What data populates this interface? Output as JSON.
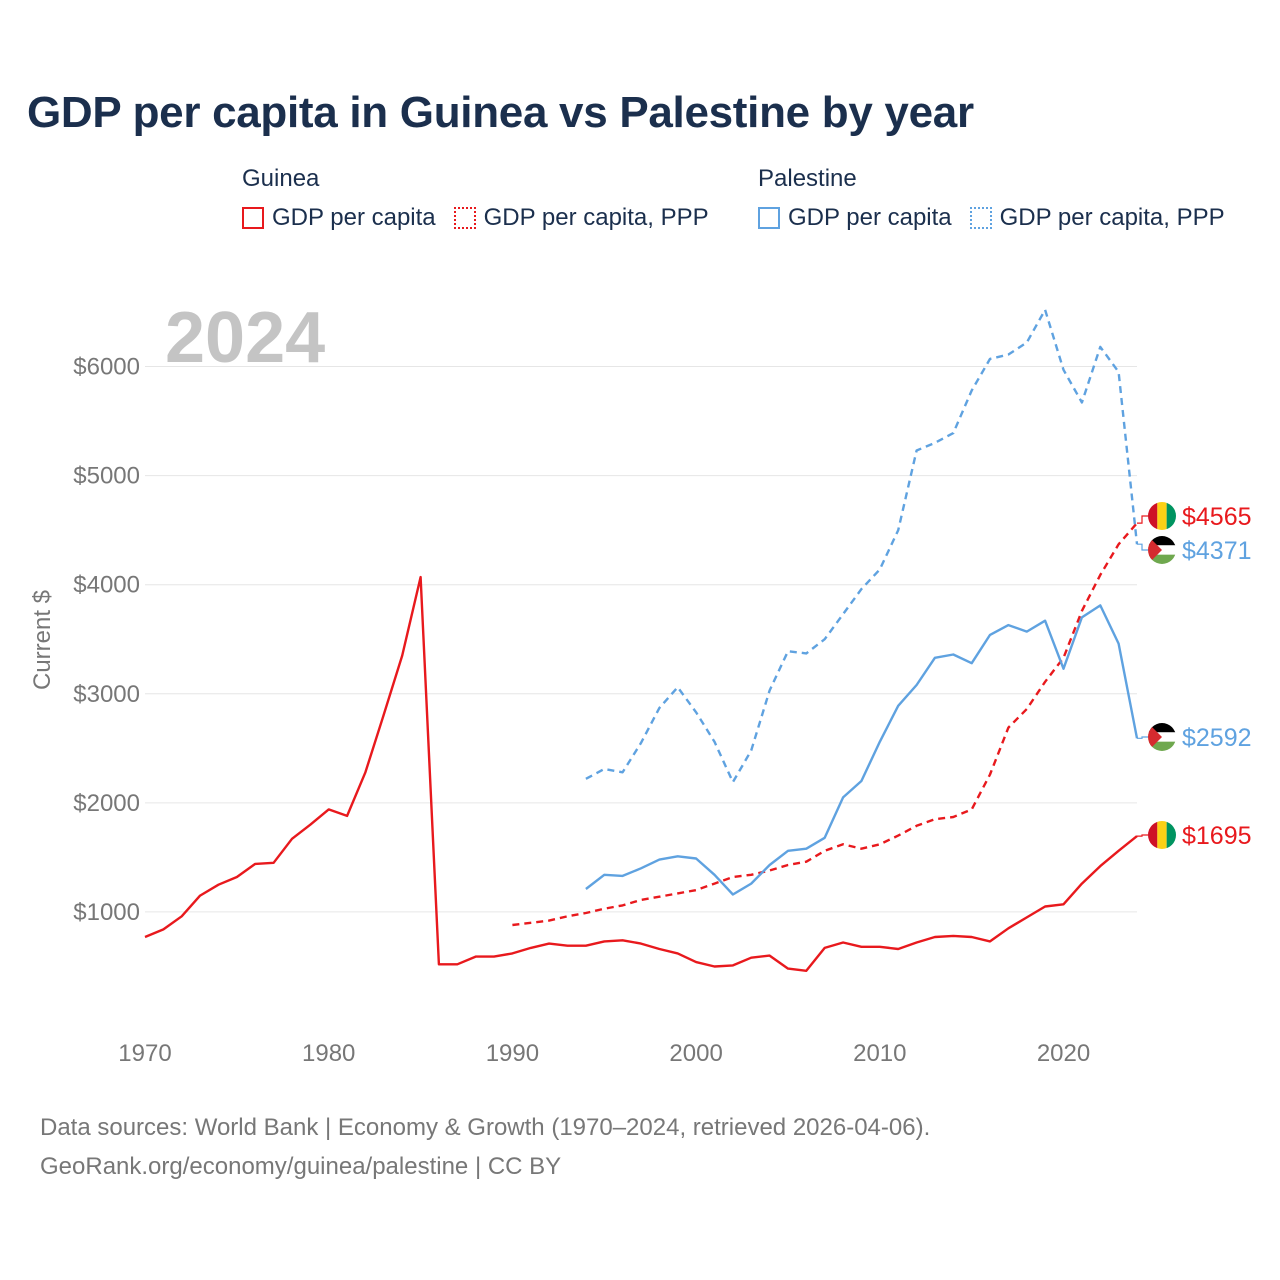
{
  "title": "GDP per capita in Guinea vs Palestine by year",
  "legend": {
    "groups": [
      {
        "name": "Guinea",
        "color": "#e8191d",
        "items": [
          {
            "label": "GDP per capita",
            "style": "solid"
          },
          {
            "label": "GDP per capita, PPP",
            "style": "dotted"
          }
        ]
      },
      {
        "name": "Palestine",
        "color": "#5fa2e0",
        "items": [
          {
            "label": "GDP per capita",
            "style": "solid"
          },
          {
            "label": "GDP per capita, PPP",
            "style": "dotted"
          }
        ]
      }
    ]
  },
  "chart_data": {
    "type": "line",
    "year_watermark": "2024",
    "ylabel": "Current $",
    "xlabel": "",
    "xlim": [
      1970,
      2024
    ],
    "ylim": [
      0,
      6500
    ],
    "x_ticks": [
      1970,
      1980,
      1990,
      2000,
      2010,
      2020
    ],
    "y_ticks": [
      1000,
      2000,
      3000,
      4000,
      5000,
      6000
    ],
    "y_tick_labels": [
      "$1000",
      "$2000",
      "$3000",
      "$4000",
      "$5000",
      "$6000"
    ],
    "grid": true,
    "series": [
      {
        "name": "Guinea GDP per capita",
        "country": "Guinea",
        "color": "#e8191d",
        "dash": "solid",
        "end_label": "$1695",
        "start_year": 1970,
        "values": [
          770,
          840,
          960,
          1150,
          1250,
          1320,
          1440,
          1450,
          1670,
          1800,
          1940,
          1880,
          2280,
          2810,
          3350,
          4070,
          520,
          520,
          590,
          590,
          620,
          670,
          710,
          690,
          690,
          730,
          740,
          710,
          660,
          620,
          540,
          500,
          510,
          580,
          600,
          480,
          460,
          670,
          720,
          680,
          680,
          660,
          720,
          770,
          780,
          770,
          730,
          850,
          950,
          1050,
          1070,
          1260,
          1420,
          1560,
          1695
        ]
      },
      {
        "name": "Guinea GDP per capita, PPP",
        "country": "Guinea",
        "color": "#e8191d",
        "dash": "dashed",
        "end_label": "$4565",
        "start_year": 1990,
        "values": [
          880,
          900,
          920,
          960,
          990,
          1030,
          1060,
          1110,
          1140,
          1170,
          1200,
          1260,
          1320,
          1340,
          1380,
          1430,
          1460,
          1560,
          1620,
          1580,
          1620,
          1700,
          1790,
          1850,
          1870,
          1940,
          2260,
          2690,
          2860,
          3110,
          3330,
          3760,
          4090,
          4370,
          4565
        ]
      },
      {
        "name": "Palestine GDP per capita",
        "country": "Palestine",
        "color": "#5fa2e0",
        "dash": "solid",
        "end_label": "$2592",
        "start_year": 1994,
        "values": [
          1210,
          1340,
          1330,
          1400,
          1480,
          1510,
          1490,
          1340,
          1160,
          1260,
          1430,
          1560,
          1580,
          1680,
          2050,
          2200,
          2560,
          2890,
          3080,
          3330,
          3360,
          3280,
          3540,
          3630,
          3570,
          3670,
          3230,
          3700,
          3810,
          3460,
          2592
        ]
      },
      {
        "name": "Palestine GDP per capita, PPP",
        "country": "Palestine",
        "color": "#5fa2e0",
        "dash": "dashed",
        "end_label": "$4371",
        "start_year": 1994,
        "values": [
          2220,
          2310,
          2280,
          2550,
          2870,
          3060,
          2830,
          2560,
          2190,
          2480,
          3030,
          3390,
          3370,
          3500,
          3730,
          3960,
          4140,
          4500,
          5230,
          5300,
          5390,
          5780,
          6070,
          6110,
          6220,
          6520,
          5970,
          5670,
          6180,
          5950,
          4371
        ]
      }
    ]
  },
  "sources_line1": "Data sources: World Bank | Economy & Growth (1970–2024, retrieved 2026-04-06).",
  "sources_line2": "GeoRank.org/economy/guinea/palestine | CC BY"
}
